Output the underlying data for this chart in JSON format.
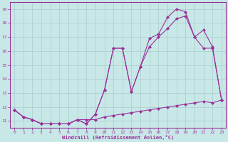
{
  "xlabel": "Windchill (Refroidissement éolien,°C)",
  "bg_color": "#c8e8e8",
  "line_color": "#993399",
  "grid_color": "#aacccc",
  "xlim": [
    -0.5,
    23.5
  ],
  "ylim": [
    10.5,
    19.5
  ],
  "yticks": [
    11,
    12,
    13,
    14,
    15,
    16,
    17,
    18,
    19
  ],
  "xticks": [
    0,
    1,
    2,
    3,
    4,
    5,
    6,
    7,
    8,
    9,
    10,
    11,
    12,
    13,
    14,
    15,
    16,
    17,
    18,
    19,
    20,
    21,
    22,
    23
  ],
  "line1_x": [
    0,
    1,
    2,
    3,
    4,
    5,
    6,
    7,
    8,
    9,
    10,
    11,
    12,
    13,
    14,
    15,
    16,
    17,
    18,
    19,
    20,
    21,
    22,
    23
  ],
  "line1_y": [
    11.8,
    11.3,
    11.1,
    10.8,
    10.8,
    10.8,
    10.8,
    11.1,
    11.1,
    11.1,
    11.3,
    11.4,
    11.5,
    11.6,
    11.7,
    11.8,
    11.9,
    12.0,
    12.1,
    12.2,
    12.3,
    12.4,
    12.3,
    12.5
  ],
  "line2_x": [
    0,
    1,
    2,
    3,
    4,
    5,
    6,
    7,
    8,
    9,
    10,
    11,
    12,
    13,
    14,
    15,
    16,
    17,
    18,
    19,
    20,
    21,
    22,
    23
  ],
  "line2_y": [
    11.8,
    11.3,
    11.1,
    10.8,
    10.8,
    10.8,
    10.8,
    11.1,
    10.8,
    11.5,
    13.2,
    16.2,
    16.2,
    13.1,
    14.9,
    16.3,
    17.0,
    17.6,
    18.3,
    18.5,
    17.0,
    16.2,
    16.2,
    12.5
  ],
  "line3_x": [
    0,
    1,
    2,
    3,
    4,
    5,
    6,
    7,
    8,
    9,
    10,
    11,
    12,
    13,
    14,
    15,
    16,
    17,
    18,
    19,
    20,
    21,
    22,
    23
  ],
  "line3_y": [
    11.8,
    11.3,
    11.1,
    10.8,
    10.8,
    10.8,
    10.8,
    11.1,
    10.8,
    11.5,
    13.2,
    16.2,
    16.2,
    13.1,
    14.9,
    16.9,
    17.2,
    18.4,
    19.0,
    18.8,
    17.0,
    17.5,
    16.3,
    12.5
  ]
}
